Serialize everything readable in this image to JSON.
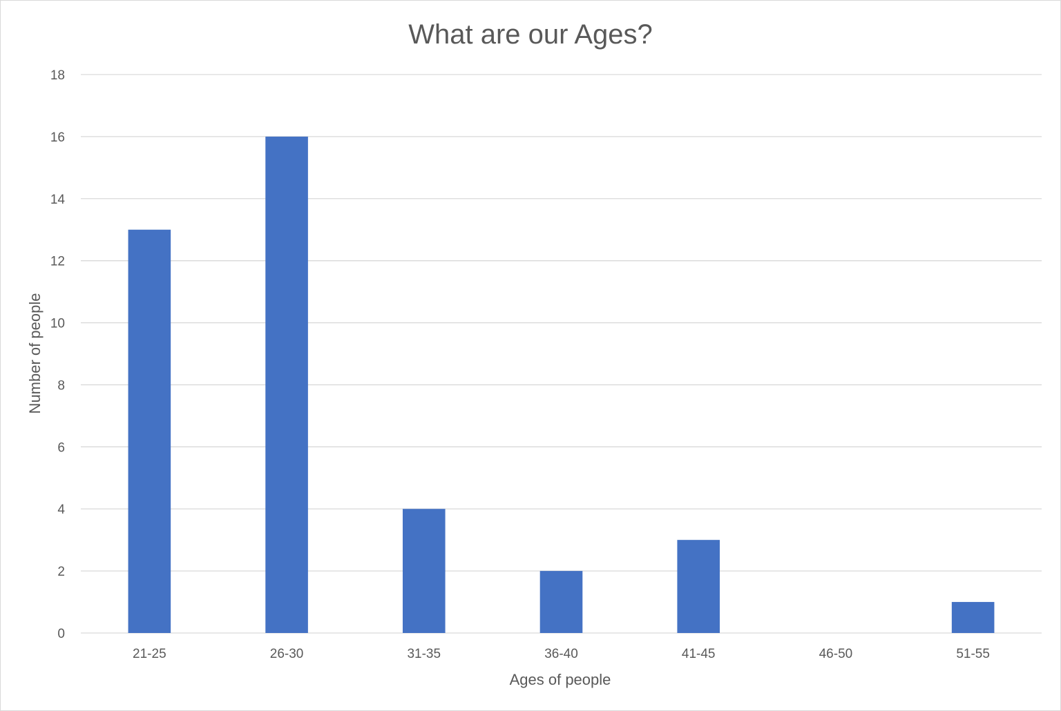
{
  "chart_data": {
    "type": "bar",
    "title": "What are our Ages?",
    "xlabel": "Ages of people",
    "ylabel": "Number of people",
    "categories": [
      "21-25",
      "26-30",
      "31-35",
      "36-40",
      "41-45",
      "46-50",
      "51-55"
    ],
    "values": [
      13,
      16,
      4,
      2,
      3,
      0,
      1
    ],
    "ylim": [
      0,
      18
    ],
    "yticks": [
      "0",
      "2",
      "4",
      "6",
      "8",
      "10",
      "12",
      "14",
      "16",
      "18"
    ],
    "grid": true,
    "legend": "none",
    "colors": {
      "bar": "#4472c4",
      "grid": "#d9d9d9",
      "text": "#595959",
      "frame": "#d9d9d9"
    }
  }
}
